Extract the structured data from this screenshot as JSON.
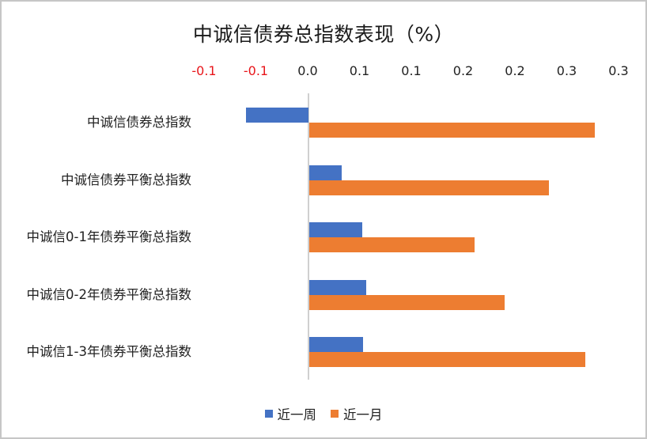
{
  "chart_data": {
    "type": "bar",
    "orientation": "horizontal",
    "title": "中诚信债券总指数表现（%）",
    "xlabel": "",
    "ylabel": "",
    "xlim": [
      -0.1,
      0.3
    ],
    "x_ticks": [
      -0.1,
      -0.05,
      0.0,
      0.05,
      0.1,
      0.15,
      0.2,
      0.25,
      0.3
    ],
    "x_tick_labels": [
      "-0.1",
      "-0.1",
      "0.0",
      "0.1",
      "0.1",
      "0.2",
      "0.2",
      "0.3",
      "0.3"
    ],
    "x_tick_label_colors": [
      "#e8161b",
      "#e8161b",
      "#222222",
      "#222222",
      "#222222",
      "#222222",
      "#222222",
      "#222222",
      "#222222"
    ],
    "axis_position": "top",
    "grid": false,
    "categories": [
      "中诚信债券总指数",
      "中诚信债券平衡总指数",
      "中诚信0-1年债券平衡总指数",
      "中诚信0-2年债券平衡总指数",
      "中诚信1-3年债券平衡总指数"
    ],
    "series": [
      {
        "name": "近一周",
        "color": "#4472c4",
        "values": [
          -0.06,
          0.032,
          0.052,
          0.056,
          0.053
        ]
      },
      {
        "name": "近一月",
        "color": "#ed7d31",
        "values": [
          0.276,
          0.232,
          0.16,
          0.189,
          0.267
        ]
      }
    ],
    "legend_position": "bottom"
  }
}
